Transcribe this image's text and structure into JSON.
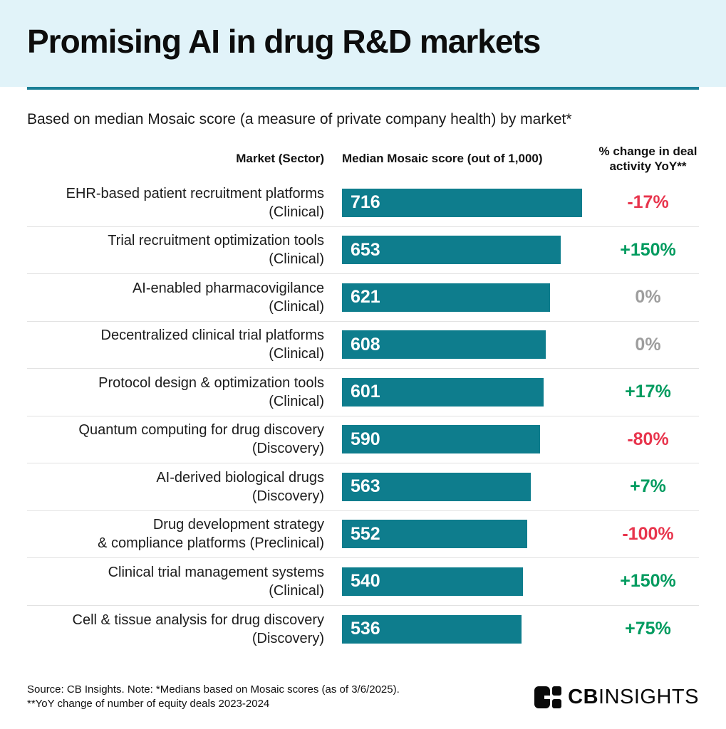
{
  "colors": {
    "banner_bg": "#E1F3F9",
    "rule": "#1A7F96",
    "bar": "#0E7D8D",
    "negative": "#E8354D",
    "positive": "#019B5F",
    "neutral": "#9E9E9E",
    "divider": "#E2E2E2"
  },
  "header": {
    "title": "Promising AI in drug R&D markets"
  },
  "subtitle": "Based on median Mosaic score (a measure of private company health) by market*",
  "table": {
    "col_market": "Market (Sector)",
    "col_score": "Median Mosaic score (out of 1,000)",
    "col_change_line1": "% change in deal",
    "col_change_line2": "activity YoY**",
    "score_max_reference": 716,
    "rows": [
      {
        "market_line1": "EHR-based patient recruitment platforms",
        "market_line2": "(Clinical)",
        "score": 716,
        "change": "-17%",
        "sentiment": "negative"
      },
      {
        "market_line1": "Trial recruitment optimization tools",
        "market_line2": "(Clinical)",
        "score": 653,
        "change": "+150%",
        "sentiment": "positive"
      },
      {
        "market_line1": "AI-enabled pharmacovigilance",
        "market_line2": "(Clinical)",
        "score": 621,
        "change": "0%",
        "sentiment": "neutral"
      },
      {
        "market_line1": "Decentralized clinical trial platforms",
        "market_line2": "(Clinical)",
        "score": 608,
        "change": "0%",
        "sentiment": "neutral"
      },
      {
        "market_line1": "Protocol design & optimization tools",
        "market_line2": "(Clinical)",
        "score": 601,
        "change": "+17%",
        "sentiment": "positive"
      },
      {
        "market_line1": "Quantum computing for drug discovery",
        "market_line2": "(Discovery)",
        "score": 590,
        "change": "-80%",
        "sentiment": "negative"
      },
      {
        "market_line1": "AI-derived biological drugs",
        "market_line2": "(Discovery)",
        "score": 563,
        "change": "+7%",
        "sentiment": "positive"
      },
      {
        "market_line1": "Drug development strategy",
        "market_line2": "& compliance platforms (Preclinical)",
        "score": 552,
        "change": "-100%",
        "sentiment": "negative"
      },
      {
        "market_line1": "Clinical trial management systems",
        "market_line2": "(Clinical)",
        "score": 540,
        "change": "+150%",
        "sentiment": "positive"
      },
      {
        "market_line1": "Cell & tissue analysis for drug discovery",
        "market_line2": "(Discovery)",
        "score": 536,
        "change": "+75%",
        "sentiment": "positive"
      }
    ]
  },
  "chart_data": {
    "type": "bar",
    "orientation": "horizontal",
    "title": "Promising AI in drug R&D markets",
    "subtitle": "Based on median Mosaic score (a measure of private company health) by market*",
    "categories": [
      "EHR-based patient recruitment platforms (Clinical)",
      "Trial recruitment optimization tools (Clinical)",
      "AI-enabled pharmacovigilance (Clinical)",
      "Decentralized clinical trial platforms (Clinical)",
      "Protocol design & optimization tools (Clinical)",
      "Quantum computing for drug discovery (Discovery)",
      "AI-derived biological drugs (Discovery)",
      "Drug development strategy & compliance platforms (Preclinical)",
      "Clinical trial management systems (Clinical)",
      "Cell & tissue analysis for drug discovery (Discovery)"
    ],
    "series": [
      {
        "name": "Median Mosaic score (out of 1,000)",
        "values": [
          716,
          653,
          621,
          608,
          601,
          590,
          563,
          552,
          540,
          536
        ]
      },
      {
        "name": "% change in deal activity YoY**",
        "values": [
          "-17%",
          "+150%",
          "0%",
          "0%",
          "+17%",
          "-80%",
          "+7%",
          "-100%",
          "+150%",
          "+75%"
        ]
      }
    ],
    "xlim": [
      0,
      1000
    ],
    "grid": false,
    "legend": "none",
    "value_labels": "inside-start",
    "bar_color": "#0E7D8D"
  },
  "footer": {
    "note_line1": "Source: CB Insights. Note: *Medians based on Mosaic scores (as of 3/6/2025).",
    "note_line2": "**YoY change of number of equity deals 2023-2024",
    "logo_bold": "CB",
    "logo_light": "INSIGHTS"
  }
}
